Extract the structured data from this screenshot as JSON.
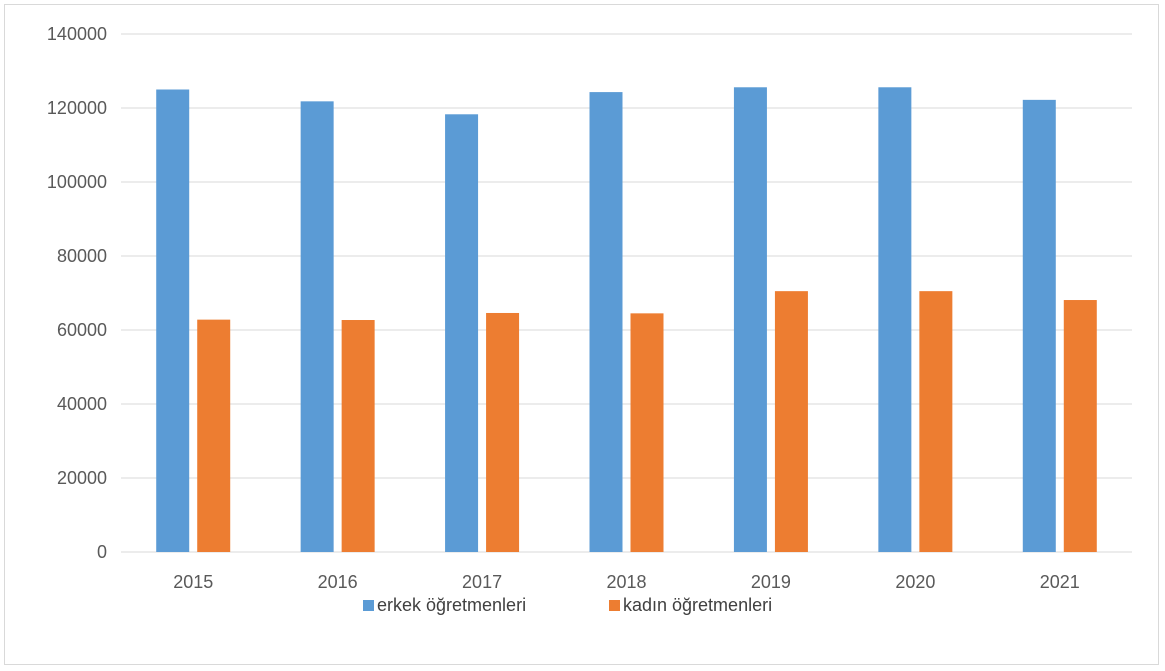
{
  "chart_data": {
    "type": "bar",
    "title": "",
    "xlabel": "",
    "ylabel": "",
    "categories": [
      "2015",
      "2016",
      "2017",
      "2018",
      "2019",
      "2020",
      "2021"
    ],
    "series": [
      {
        "name": "erkek öğretmenleri",
        "color": "#5b9bd5",
        "values": [
          125000,
          121800,
          118300,
          124300,
          125600,
          125600,
          122200
        ]
      },
      {
        "name": "kadın öğretmenleri",
        "color": "#ed7d31",
        "values": [
          62800,
          62700,
          64600,
          64500,
          70500,
          70500,
          68100
        ]
      }
    ],
    "ylim": [
      0,
      140000
    ],
    "yticks": [
      "0",
      "20000",
      "40000",
      "60000",
      "80000",
      "100000",
      "120000",
      "140000"
    ],
    "grid": true,
    "gridline_color": "#d9d9d9",
    "legend_position": "bottom"
  }
}
